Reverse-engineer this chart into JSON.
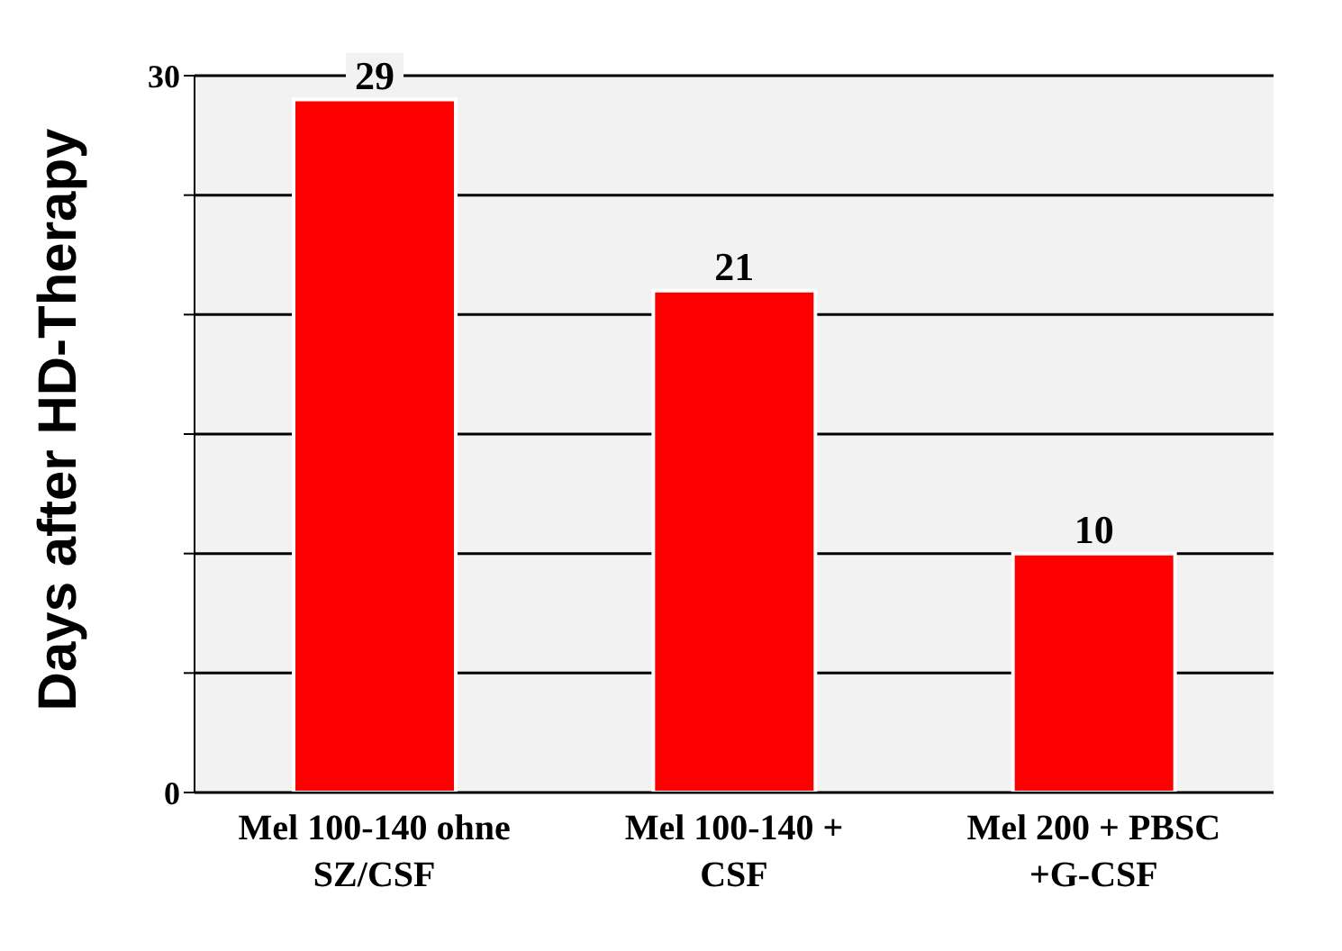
{
  "chart_data": {
    "type": "bar",
    "ylabel": "Days after HD-Therapy",
    "categories": [
      "Mel 100-140 ohne SZ/CSF",
      "Mel 100-140 + CSF",
      "Mel 200 + PBSC +G-CSF"
    ],
    "values": [
      29,
      21,
      10
    ],
    "color": "#ff0000",
    "ylim": [
      0,
      30
    ],
    "yticks": [
      0,
      {
        "value": 5,
        "label": null
      },
      {
        "value": 10,
        "label": null
      },
      {
        "value": 15,
        "label": null
      },
      {
        "value": 20,
        "label": null
      },
      {
        "value": 25,
        "label": null
      },
      30
    ],
    "grid": "y",
    "data_labels": true
  }
}
